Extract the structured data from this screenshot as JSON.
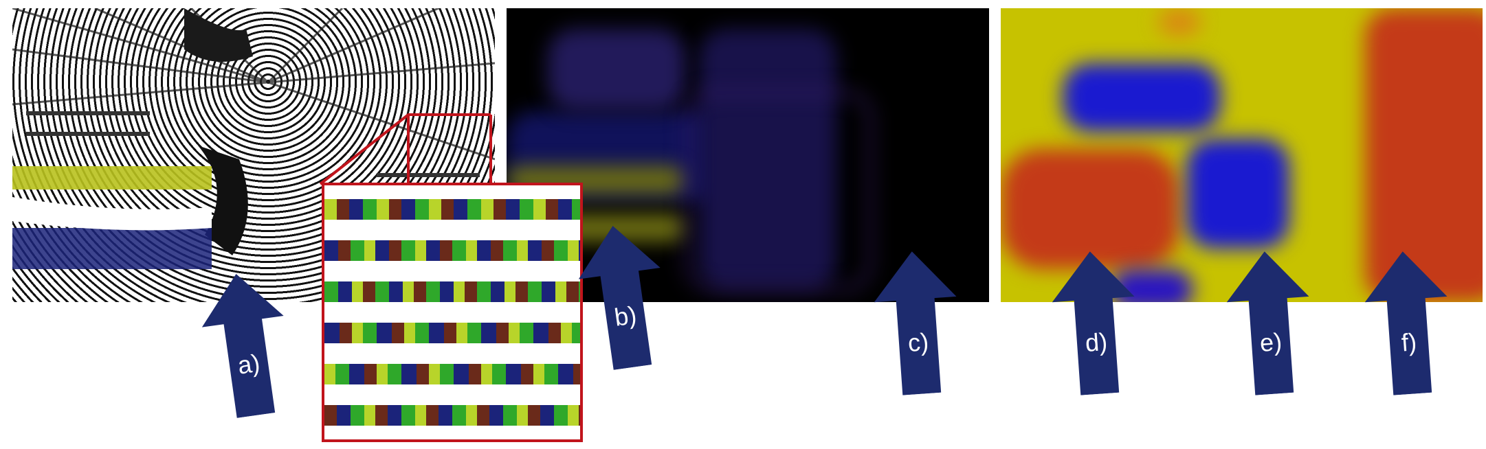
{
  "figure": {
    "labels": [
      "a)",
      "b)",
      "c)",
      "d)",
      "e)",
      "f)"
    ],
    "colors": {
      "arrow": "#1d2b6e",
      "inset_border": "#c1141c",
      "heat_low": "#1a1ad0",
      "heat_mid": "#c7c200",
      "heat_high": "#c43a18",
      "dark_bg": "#000000",
      "glow_violet": "#3a1f6e"
    },
    "panels": [
      "rendered-glyph-field",
      "dark-volume-rendering",
      "heatmap-rendering"
    ]
  }
}
